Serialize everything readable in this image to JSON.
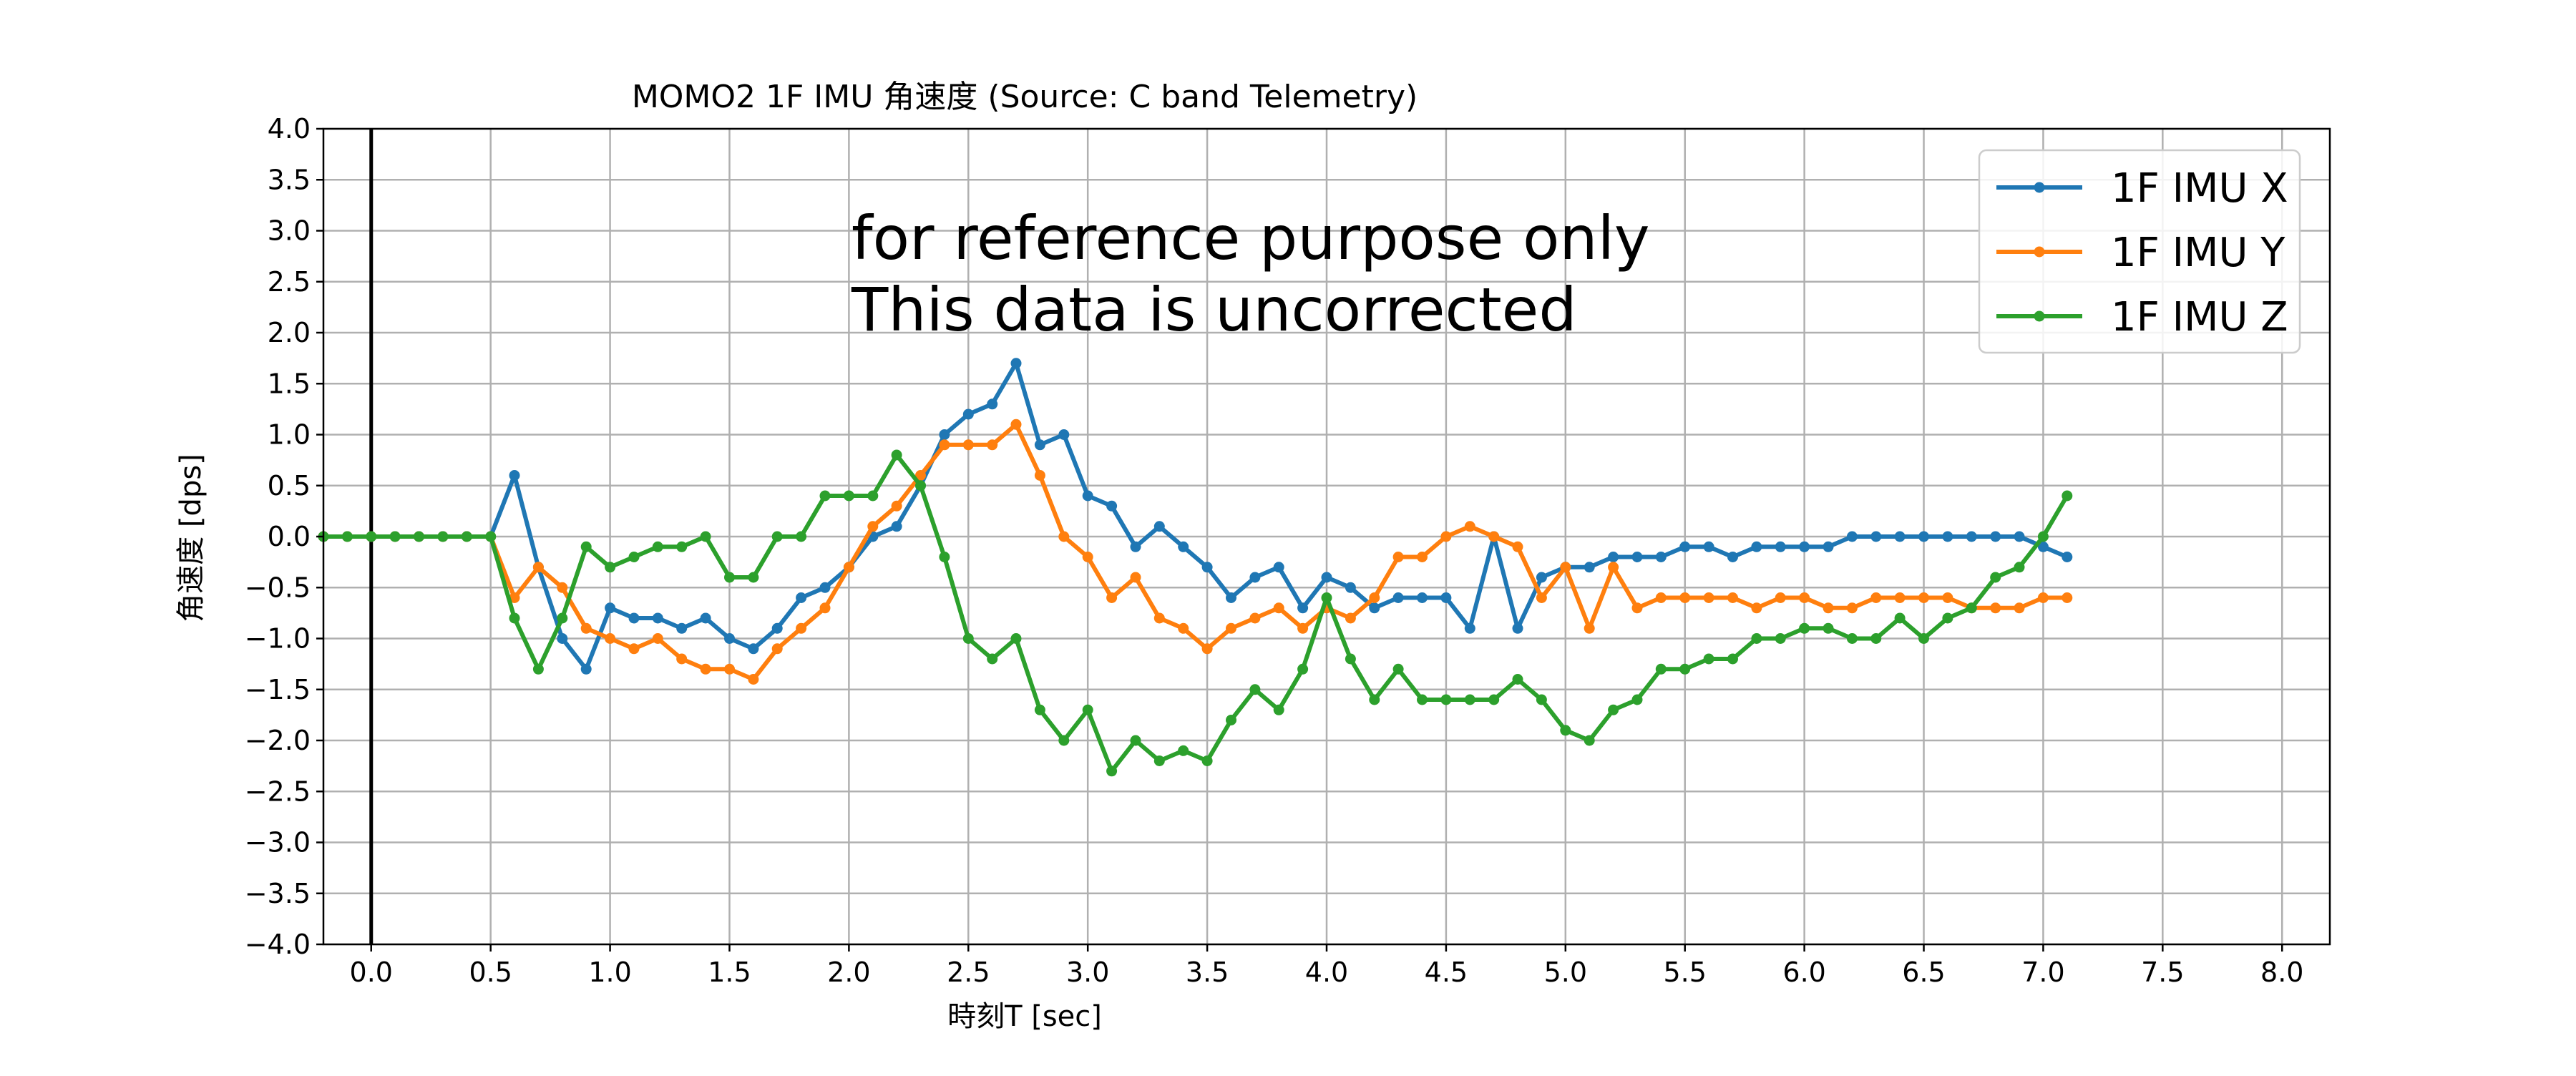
{
  "chart_data": {
    "type": "line",
    "title": "MOMO2 1F IMU 角速度 (Source: C band Telemetry)",
    "xlabel": "時刻T [sec]",
    "ylabel": "角速度 [dps]",
    "xlim": [
      -0.2,
      8.2
    ],
    "ylim": [
      -4.0,
      4.0
    ],
    "x_ticks": [
      "0.0",
      "0.5",
      "1.0",
      "1.5",
      "2.0",
      "2.5",
      "3.0",
      "3.5",
      "4.0",
      "4.5",
      "5.0",
      "5.5",
      "6.0",
      "6.5",
      "7.0",
      "7.5",
      "8.0"
    ],
    "y_ticks": [
      "4.0",
      "3.5",
      "3.0",
      "2.5",
      "2.0",
      "1.5",
      "1.0",
      "0.5",
      "0.0",
      "−0.5",
      "−1.0",
      "−1.5",
      "−2.0",
      "−2.5",
      "−3.0",
      "−3.5",
      "−4.0"
    ],
    "grid": true,
    "vertical_reference_line_x": 0.0,
    "legend_position": "top-right",
    "annotation": [
      "for reference purpose only",
      "This data is uncorrected"
    ],
    "x": [
      -0.2,
      -0.1,
      0.0,
      0.1,
      0.2,
      0.3,
      0.4,
      0.5,
      0.6,
      0.7,
      0.8,
      0.9,
      1.0,
      1.1,
      1.2,
      1.3,
      1.4,
      1.5,
      1.6,
      1.7,
      1.8,
      1.9,
      2.0,
      2.1,
      2.2,
      2.3,
      2.4,
      2.5,
      2.6,
      2.7,
      2.8,
      2.9,
      3.0,
      3.1,
      3.2,
      3.3,
      3.4,
      3.5,
      3.6,
      3.7,
      3.8,
      3.9,
      4.0,
      4.1,
      4.2,
      4.3,
      4.4,
      4.5,
      4.6,
      4.7,
      4.8,
      4.9,
      5.0,
      5.1,
      5.2,
      5.3,
      5.4,
      5.5,
      5.6,
      5.7,
      5.8,
      5.9,
      6.0,
      6.1,
      6.2,
      6.3,
      6.4,
      6.5,
      6.6,
      6.7,
      6.8,
      6.9,
      7.0,
      7.1
    ],
    "series": [
      {
        "name": "1F IMU X",
        "color": "#1f77b4",
        "values": [
          0,
          0,
          0,
          0,
          0,
          0,
          0,
          0,
          0.6,
          -0.3,
          -1.0,
          -1.3,
          -0.7,
          -0.8,
          -0.8,
          -0.9,
          -0.8,
          -1.0,
          -1.1,
          -0.9,
          -0.6,
          -0.5,
          -0.3,
          0.0,
          0.1,
          0.5,
          1.0,
          1.2,
          1.3,
          1.7,
          0.9,
          1.0,
          0.4,
          0.3,
          -0.1,
          0.1,
          -0.1,
          -0.3,
          -0.6,
          -0.4,
          -0.3,
          -0.7,
          -0.4,
          -0.5,
          -0.7,
          -0.6,
          -0.6,
          -0.6,
          -0.9,
          0.0,
          -0.9,
          -0.4,
          -0.3,
          -0.3,
          -0.2,
          -0.2,
          -0.2,
          -0.1,
          -0.1,
          -0.2,
          -0.1,
          -0.1,
          -0.1,
          -0.1,
          0.0,
          0.0,
          0.0,
          0.0,
          0.0,
          0.0,
          0.0,
          0.0,
          -0.1,
          -0.2
        ]
      },
      {
        "name": "1F IMU Y",
        "color": "#ff7f0e",
        "values": [
          0,
          0,
          0,
          0,
          0,
          0,
          0,
          0,
          -0.6,
          -0.3,
          -0.5,
          -0.9,
          -1.0,
          -1.1,
          -1.0,
          -1.2,
          -1.3,
          -1.3,
          -1.4,
          -1.1,
          -0.9,
          -0.7,
          -0.3,
          0.1,
          0.3,
          0.6,
          0.9,
          0.9,
          0.9,
          1.1,
          0.6,
          0.0,
          -0.2,
          -0.6,
          -0.4,
          -0.8,
          -0.9,
          -1.1,
          -0.9,
          -0.8,
          -0.7,
          -0.9,
          -0.7,
          -0.8,
          -0.6,
          -0.2,
          -0.2,
          0.0,
          0.1,
          0.0,
          -0.1,
          -0.6,
          -0.3,
          -0.9,
          -0.3,
          -0.7,
          -0.6,
          -0.6,
          -0.6,
          -0.6,
          -0.7,
          -0.6,
          -0.6,
          -0.7,
          -0.7,
          -0.6,
          -0.6,
          -0.6,
          -0.6,
          -0.7,
          -0.7,
          -0.7,
          -0.6,
          -0.6
        ]
      },
      {
        "name": "1F IMU Z",
        "color": "#2ca02c",
        "values": [
          0,
          0,
          0,
          0,
          0,
          0,
          0,
          0,
          -0.8,
          -1.3,
          -0.8,
          -0.1,
          -0.3,
          -0.2,
          -0.1,
          -0.1,
          0.0,
          -0.4,
          -0.4,
          0.0,
          0.0,
          0.4,
          0.4,
          0.4,
          0.8,
          0.5,
          -0.2,
          -1.0,
          -1.2,
          -1.0,
          -1.7,
          -2.0,
          -1.7,
          -2.3,
          -2.0,
          -2.2,
          -2.1,
          -2.2,
          -1.8,
          -1.5,
          -1.7,
          -1.3,
          -0.6,
          -1.2,
          -1.6,
          -1.3,
          -1.6,
          -1.6,
          -1.6,
          -1.6,
          -1.4,
          -1.6,
          -1.9,
          -2.0,
          -1.7,
          -1.6,
          -1.3,
          -1.3,
          -1.2,
          -1.2,
          -1.0,
          -1.0,
          -0.9,
          -0.9,
          -1.0,
          -1.0,
          -0.8,
          -1.0,
          -0.8,
          -0.7,
          -0.4,
          -0.3,
          0.0,
          0.4
        ]
      }
    ]
  }
}
